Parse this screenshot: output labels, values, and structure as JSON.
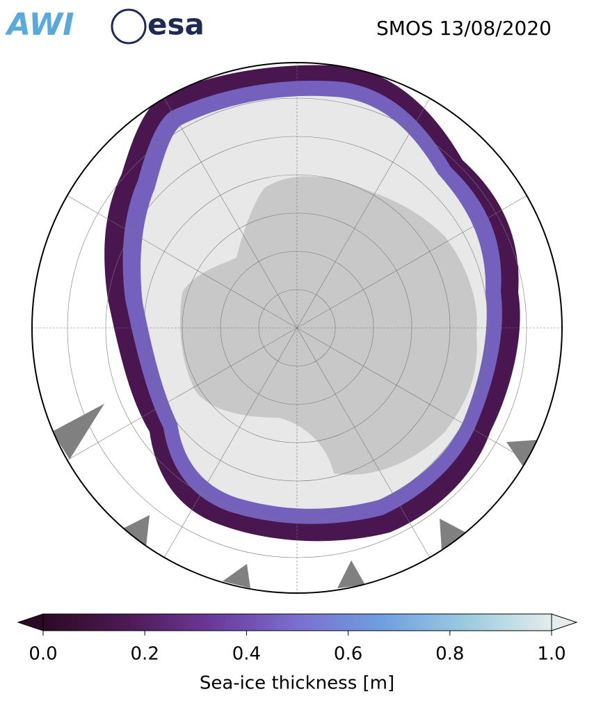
{
  "header": {
    "logos": [
      "AWI",
      "esa"
    ],
    "title": "SMOS 13/08/2020"
  },
  "colorbar": {
    "label": "Sea-ice thickness [m]",
    "xlim": [
      0,
      1
    ],
    "xticks": [
      {
        "value": 0,
        "label": "0.0"
      },
      0.2,
      0.4,
      0.6,
      0.8,
      {
        "value": 1,
        "label": "1.0"
      }
    ],
    "colors": [
      "#2a0a24",
      "#4e1a55",
      "#6b3a9a",
      "#7a6fd0",
      "#6f9fe0",
      "#9ccbe0",
      "#e4ecec"
    ]
  }
}
